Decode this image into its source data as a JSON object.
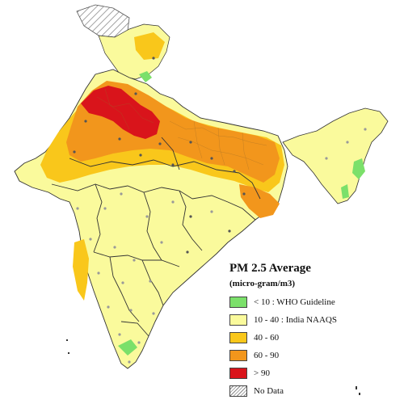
{
  "legend": {
    "title": "PM 2.5 Average",
    "subtitle": "(micro-gram/m3)",
    "items": [
      {
        "label": "< 10    : WHO Guideline",
        "color": "#7be06a"
      },
      {
        "label": "10 - 40 : India NAAQS",
        "color": "#fafa9c"
      },
      {
        "label": "40 - 60",
        "color": "#f9c71b"
      },
      {
        "label": "60 - 90",
        "color": "#f2961c"
      },
      {
        "label": "> 90",
        "color": "#d9141b"
      },
      {
        "label": "No Data",
        "color": "hatched"
      }
    ]
  },
  "colors": {
    "low": "#7be06a",
    "naaqs": "#fafa9c",
    "mid": "#f9c71b",
    "high": "#f2961c",
    "severe": "#d9141b",
    "border": "#333333",
    "district": "#8a8a8a"
  }
}
